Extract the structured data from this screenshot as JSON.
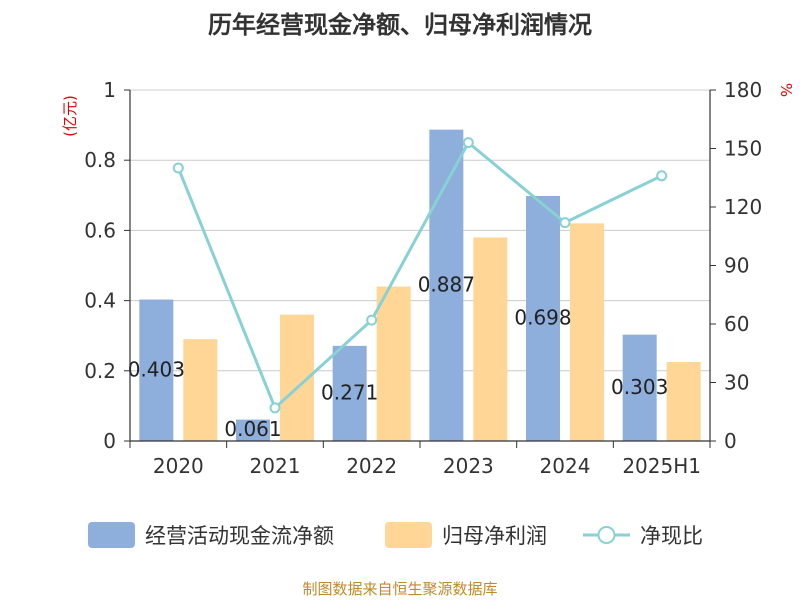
{
  "chart_data": {
    "type": "bar",
    "title": "历年经营现金净额、归母净利润情况",
    "categories": [
      "2020",
      "2021",
      "2022",
      "2023",
      "2024",
      "2025H1"
    ],
    "series": [
      {
        "name": "经营活动现金流净额",
        "kind": "bar",
        "axis": "left",
        "color": "#8eaedb",
        "values": [
          0.403,
          0.061,
          0.271,
          0.887,
          0.698,
          0.303
        ],
        "labels": [
          "0.403",
          "0.061",
          "0.271",
          "0.887",
          "0.698",
          "0.303"
        ]
      },
      {
        "name": "归母净利润",
        "kind": "bar",
        "axis": "left",
        "color": "#ffd695",
        "values": [
          0.29,
          0.36,
          0.44,
          0.58,
          0.62,
          0.225
        ]
      },
      {
        "name": "净现比",
        "kind": "line",
        "axis": "right",
        "color": "#88d1d4",
        "values": [
          140,
          17,
          62,
          153,
          112,
          136
        ]
      }
    ],
    "y_left": {
      "unit": "(亿元)",
      "ylim": [
        0,
        1
      ],
      "ticks": [
        "0",
        "0.2",
        "0.4",
        "0.6",
        "0.8",
        "1"
      ]
    },
    "y_right": {
      "unit": "%",
      "ylim": [
        0,
        180
      ],
      "ticks": [
        "0",
        "30",
        "60",
        "90",
        "120",
        "150",
        "180"
      ]
    },
    "grid": true,
    "legend": "bottom",
    "source": "制图数据来自恒生聚源数据库"
  }
}
